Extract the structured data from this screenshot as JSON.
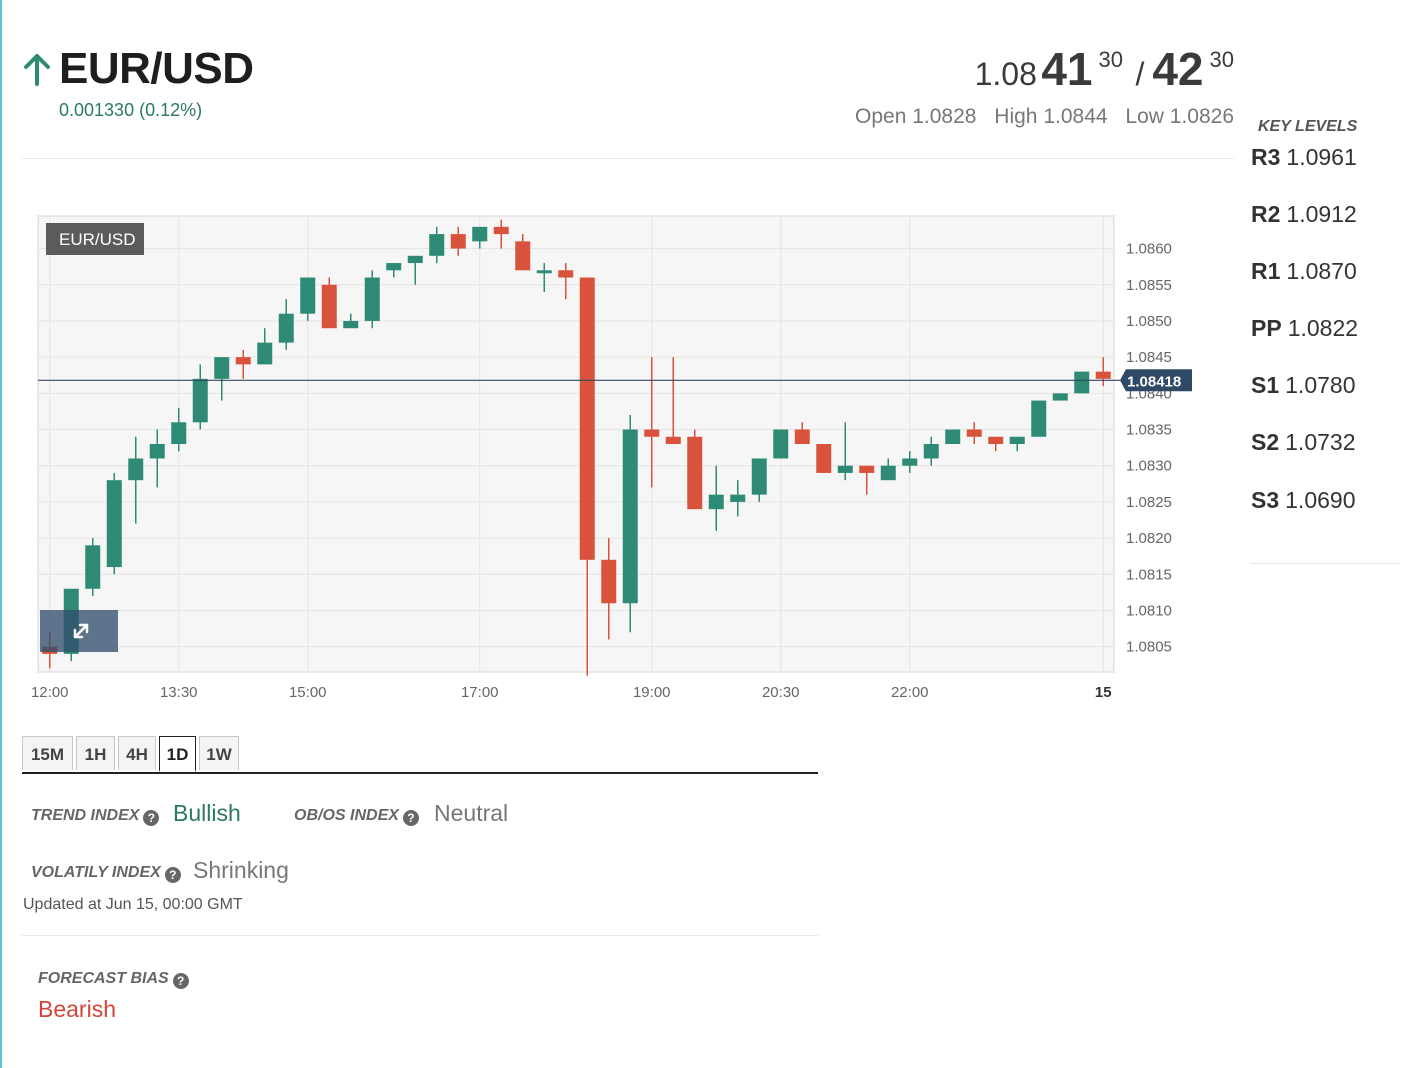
{
  "header": {
    "pair": "EUR/USD",
    "direction_icon": "arrow-up-icon",
    "change": "0.001330 (0.12%)",
    "bid": {
      "prefix": "1.08",
      "big": "41",
      "pip": "30"
    },
    "separator": "/",
    "ask": {
      "big": "42",
      "pip": "30"
    },
    "open": "Open 1.0828",
    "high": "High 1.0844",
    "low": "Low 1.0826"
  },
  "key_levels": {
    "title": "KEY LEVELS",
    "items": [
      {
        "label": "R3",
        "value": "1.0961"
      },
      {
        "label": "R2",
        "value": "1.0912"
      },
      {
        "label": "R1",
        "value": "1.0870"
      },
      {
        "label": "PP",
        "value": "1.0822"
      },
      {
        "label": "S1",
        "value": "1.0780"
      },
      {
        "label": "S2",
        "value": "1.0732"
      },
      {
        "label": "S3",
        "value": "1.0690"
      }
    ]
  },
  "chart_data": {
    "type": "candlestick",
    "symbol_label": "EUR/USD",
    "current_price_label": "1.08418",
    "current_price": 1.08418,
    "ylim": [
      1.08015,
      1.08645
    ],
    "y_ticks": [
      "1.0860",
      "1.0855",
      "1.0850",
      "1.0845",
      "1.0840",
      "1.0835",
      "1.0830",
      "1.0825",
      "1.0820",
      "1.0815",
      "1.0810",
      "1.0805"
    ],
    "x_ticks": [
      "12:00",
      "13:30",
      "15:00",
      "17:00",
      "19:00",
      "20:30",
      "22:00",
      "15"
    ],
    "x_tick_index": [
      0.5,
      6.5,
      12.5,
      20.5,
      28.5,
      34.5,
      40.5,
      49.5
    ],
    "candles": [
      {
        "o": 1.0805,
        "h": 1.0807,
        "l": 1.0802,
        "c": 1.0804
      },
      {
        "o": 1.0804,
        "h": 1.0813,
        "l": 1.0803,
        "c": 1.0813
      },
      {
        "o": 1.0813,
        "h": 1.082,
        "l": 1.0812,
        "c": 1.0819
      },
      {
        "o": 1.0816,
        "h": 1.0829,
        "l": 1.0815,
        "c": 1.0828
      },
      {
        "o": 1.0828,
        "h": 1.0834,
        "l": 1.0822,
        "c": 1.0831
      },
      {
        "o": 1.0831,
        "h": 1.0835,
        "l": 1.0827,
        "c": 1.0833
      },
      {
        "o": 1.0833,
        "h": 1.0838,
        "l": 1.0832,
        "c": 1.0836
      },
      {
        "o": 1.0836,
        "h": 1.0844,
        "l": 1.0835,
        "c": 1.0842
      },
      {
        "o": 1.0842,
        "h": 1.0845,
        "l": 1.0839,
        "c": 1.0845
      },
      {
        "o": 1.0845,
        "h": 1.0846,
        "l": 1.0842,
        "c": 1.0844
      },
      {
        "o": 1.0844,
        "h": 1.0849,
        "l": 1.0844,
        "c": 1.0847
      },
      {
        "o": 1.0847,
        "h": 1.0853,
        "l": 1.0846,
        "c": 1.0851
      },
      {
        "o": 1.0851,
        "h": 1.0856,
        "l": 1.085,
        "c": 1.0856
      },
      {
        "o": 1.0855,
        "h": 1.0856,
        "l": 1.0849,
        "c": 1.0849
      },
      {
        "o": 1.0849,
        "h": 1.0851,
        "l": 1.0849,
        "c": 1.085
      },
      {
        "o": 1.085,
        "h": 1.0857,
        "l": 1.0849,
        "c": 1.0856
      },
      {
        "o": 1.0857,
        "h": 1.0858,
        "l": 1.0856,
        "c": 1.0858
      },
      {
        "o": 1.0858,
        "h": 1.0859,
        "l": 1.0855,
        "c": 1.0859
      },
      {
        "o": 1.0859,
        "h": 1.0863,
        "l": 1.0858,
        "c": 1.0862
      },
      {
        "o": 1.0862,
        "h": 1.0863,
        "l": 1.0859,
        "c": 1.086
      },
      {
        "o": 1.0861,
        "h": 1.0863,
        "l": 1.086,
        "c": 1.0863
      },
      {
        "o": 1.0863,
        "h": 1.0864,
        "l": 1.086,
        "c": 1.0862
      },
      {
        "o": 1.0861,
        "h": 1.0862,
        "l": 1.0857,
        "c": 1.0857
      },
      {
        "o": 1.0857,
        "h": 1.0858,
        "l": 1.0854,
        "c": 1.0857
      },
      {
        "o": 1.0857,
        "h": 1.0858,
        "l": 1.0853,
        "c": 1.0856
      },
      {
        "o": 1.0856,
        "h": 1.0856,
        "l": 1.0801,
        "c": 1.0817
      },
      {
        "o": 1.0817,
        "h": 1.082,
        "l": 1.0806,
        "c": 1.0811
      },
      {
        "o": 1.0811,
        "h": 1.0837,
        "l": 1.0807,
        "c": 1.0835
      },
      {
        "o": 1.0835,
        "h": 1.0845,
        "l": 1.0827,
        "c": 1.0834
      },
      {
        "o": 1.0834,
        "h": 1.0845,
        "l": 1.0833,
        "c": 1.0833
      },
      {
        "o": 1.0834,
        "h": 1.0835,
        "l": 1.0824,
        "c": 1.0824
      },
      {
        "o": 1.0824,
        "h": 1.083,
        "l": 1.0821,
        "c": 1.0826
      },
      {
        "o": 1.0825,
        "h": 1.0828,
        "l": 1.0823,
        "c": 1.0826
      },
      {
        "o": 1.0826,
        "h": 1.0831,
        "l": 1.0825,
        "c": 1.0831
      },
      {
        "o": 1.0831,
        "h": 1.0835,
        "l": 1.0831,
        "c": 1.0835
      },
      {
        "o": 1.0835,
        "h": 1.0836,
        "l": 1.0833,
        "c": 1.0833
      },
      {
        "o": 1.0833,
        "h": 1.0833,
        "l": 1.0829,
        "c": 1.0829
      },
      {
        "o": 1.0829,
        "h": 1.0836,
        "l": 1.0828,
        "c": 1.083
      },
      {
        "o": 1.083,
        "h": 1.083,
        "l": 1.0826,
        "c": 1.0829
      },
      {
        "o": 1.0828,
        "h": 1.0831,
        "l": 1.0828,
        "c": 1.083
      },
      {
        "o": 1.083,
        "h": 1.0832,
        "l": 1.0829,
        "c": 1.0831
      },
      {
        "o": 1.0831,
        "h": 1.0834,
        "l": 1.083,
        "c": 1.0833
      },
      {
        "o": 1.0833,
        "h": 1.0835,
        "l": 1.0833,
        "c": 1.0835
      },
      {
        "o": 1.0835,
        "h": 1.0836,
        "l": 1.0833,
        "c": 1.0834
      },
      {
        "o": 1.0834,
        "h": 1.0834,
        "l": 1.0832,
        "c": 1.0833
      },
      {
        "o": 1.0833,
        "h": 1.0834,
        "l": 1.0832,
        "c": 1.0834
      },
      {
        "o": 1.0834,
        "h": 1.0839,
        "l": 1.0834,
        "c": 1.0839
      },
      {
        "o": 1.0839,
        "h": 1.084,
        "l": 1.0839,
        "c": 1.084
      },
      {
        "o": 1.084,
        "h": 1.0843,
        "l": 1.084,
        "c": 1.0843
      },
      {
        "o": 1.0843,
        "h": 1.0845,
        "l": 1.0841,
        "c": 1.0842
      }
    ],
    "colors": {
      "up": "#2e8a74",
      "down": "#d9533c",
      "price_line": "#34495e"
    }
  },
  "timeframes": {
    "items": [
      "15M",
      "1H",
      "4H",
      "1D",
      "1W"
    ],
    "active": "1D"
  },
  "indices": {
    "trend_label": "TREND INDEX",
    "trend_value": "Bullish",
    "obos_label": "OB/OS INDEX",
    "obos_value": "Neutral",
    "volatility_label": "VOLATILY INDEX",
    "volatility_value": "Shrinking",
    "updated": "Updated at Jun 15, 00:00 GMT",
    "help_icon": "question-circle-icon"
  },
  "forecast": {
    "label": "FORECAST BIAS",
    "value": "Bearish"
  },
  "colors": {
    "bullish": "#2a7a60",
    "neutral": "#777777",
    "bearish": "#d0473a"
  }
}
